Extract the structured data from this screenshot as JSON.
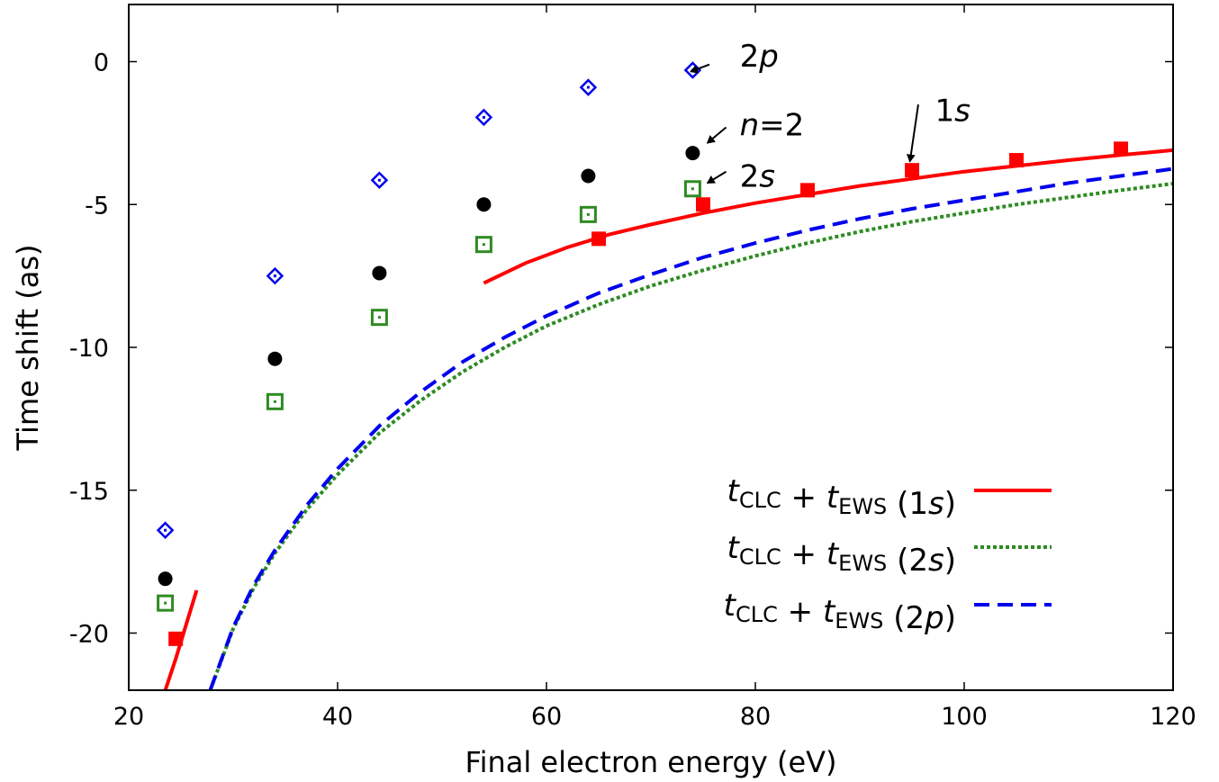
{
  "chart_data": {
    "type": "scatter",
    "xlabel": "Final electron energy (eV)",
    "ylabel": "Time shift (as)",
    "xlim": [
      20,
      120
    ],
    "ylim": [
      -22,
      2
    ],
    "x_ticks": [
      20,
      40,
      60,
      80,
      100,
      120
    ],
    "y_ticks": [
      0,
      -5,
      -10,
      -15,
      -20
    ],
    "x_tick_labels": [
      "20",
      "40",
      "60",
      "80",
      "100",
      "120"
    ],
    "y_tick_labels": [
      "0",
      "-5",
      "-10",
      "-15",
      "-20"
    ],
    "grid": false,
    "legend_position": "bottom-right",
    "point_series": [
      {
        "id": "1s",
        "marker": "filled-square",
        "color": "#ff0000",
        "x": [
          24.5,
          65,
          75,
          85,
          95,
          105,
          115
        ],
        "y": [
          -20.2,
          -6.2,
          -5.0,
          -4.5,
          -3.8,
          -3.45,
          -3.05
        ]
      },
      {
        "id": "2s",
        "marker": "open-square-dot",
        "color": "#2e8b22",
        "x": [
          23.5,
          34,
          44,
          54,
          64,
          74
        ],
        "y": [
          -18.95,
          -11.9,
          -8.95,
          -6.4,
          -5.35,
          -4.45
        ]
      },
      {
        "id": "n2",
        "marker": "filled-circle",
        "color": "#000000",
        "x": [
          23.5,
          34,
          44,
          54,
          64,
          74
        ],
        "y": [
          -18.1,
          -10.4,
          -7.4,
          -5.0,
          -4.0,
          -3.2
        ]
      },
      {
        "id": "2p",
        "marker": "open-diamond-dot",
        "color": "#0000ee",
        "x": [
          23.5,
          34,
          44,
          54,
          64,
          74
        ],
        "y": [
          -16.4,
          -7.5,
          -4.15,
          -1.95,
          -0.9,
          -0.3
        ]
      }
    ],
    "line_series": [
      {
        "id": "clc-1s-low",
        "style": "solid",
        "color": "#ff0000",
        "x": [
          23.5,
          24.5,
          25.5,
          26.5
        ],
        "y": [
          -22.0,
          -20.9,
          -19.7,
          -18.5
        ]
      },
      {
        "id": "clc-1s",
        "style": "solid",
        "color": "#ff0000",
        "x": [
          54,
          58,
          62,
          66,
          70,
          75,
          80,
          85,
          90,
          95,
          100,
          105,
          110,
          115,
          120
        ],
        "y": [
          -7.75,
          -7.05,
          -6.5,
          -6.05,
          -5.7,
          -5.3,
          -4.95,
          -4.65,
          -4.35,
          -4.1,
          -3.85,
          -3.65,
          -3.45,
          -3.27,
          -3.1
        ]
      },
      {
        "id": "clc-2s",
        "style": "dotted",
        "color": "#2e8b22",
        "x": [
          27.8,
          30,
          32,
          34,
          37,
          40,
          44,
          48,
          52,
          56,
          60,
          65,
          70,
          75,
          80,
          85,
          90,
          95,
          100,
          105,
          110,
          115,
          120
        ],
        "y": [
          -22.0,
          -19.85,
          -18.4,
          -17.2,
          -15.7,
          -14.45,
          -13.0,
          -11.85,
          -10.85,
          -10.0,
          -9.25,
          -8.5,
          -7.85,
          -7.3,
          -6.8,
          -6.35,
          -5.95,
          -5.6,
          -5.3,
          -5.0,
          -4.75,
          -4.5,
          -4.27
        ]
      },
      {
        "id": "clc-2p",
        "style": "dashed",
        "color": "#0000ee",
        "x": [
          27.8,
          30,
          32,
          34,
          37,
          40,
          44,
          48,
          52,
          56,
          60,
          65,
          70,
          75,
          80,
          85,
          90,
          95,
          100,
          105,
          110,
          115,
          120
        ],
        "y": [
          -22.0,
          -19.8,
          -18.3,
          -17.1,
          -15.55,
          -14.25,
          -12.75,
          -11.55,
          -10.5,
          -9.65,
          -8.9,
          -8.1,
          -7.45,
          -6.85,
          -6.35,
          -5.9,
          -5.5,
          -5.15,
          -4.85,
          -4.55,
          -4.25,
          -4.0,
          -3.75
        ]
      }
    ],
    "annotations": [
      {
        "id": "2p",
        "parts": [
          {
            "t": "2",
            "italic": false
          },
          {
            "t": "p",
            "italic": true
          }
        ],
        "x": 78.5,
        "y": 0.2,
        "arrow_from": [
          75.6,
          -0.1
        ],
        "arrow_to": [
          73.8,
          -0.35
        ]
      },
      {
        "id": "n2",
        "parts": [
          {
            "t": "n",
            "italic": true
          },
          {
            "t": "=2",
            "italic": false
          }
        ],
        "x": 78.5,
        "y": -2.2,
        "arrow_from": [
          77.2,
          -2.3
        ],
        "arrow_to": [
          75.4,
          -2.85
        ]
      },
      {
        "id": "2s",
        "parts": [
          {
            "t": "2",
            "italic": false
          },
          {
            "t": "s",
            "italic": true
          }
        ],
        "x": 78.5,
        "y": -4.0,
        "arrow_from": [
          77.2,
          -3.85
        ],
        "arrow_to": [
          75.4,
          -4.25
        ]
      },
      {
        "id": "1s",
        "parts": [
          {
            "t": "1",
            "italic": false
          },
          {
            "t": "s",
            "italic": true
          }
        ],
        "x": 97.2,
        "y": -1.7,
        "arrow_from": [
          95.6,
          -1.5
        ],
        "arrow_to": [
          94.8,
          -3.5
        ]
      }
    ],
    "legend": [
      {
        "series": "clc-1s",
        "parts": [
          {
            "t": "t",
            "italic": true
          },
          {
            "t": "CLC",
            "sub": true
          },
          {
            "t": " + "
          },
          {
            "t": "t",
            "italic": true
          },
          {
            "t": "EWS",
            "sub": true
          },
          {
            "t": " (1"
          },
          {
            "t": "s",
            "italic": true
          },
          {
            "t": ")"
          }
        ]
      },
      {
        "series": "clc-2s",
        "parts": [
          {
            "t": "t",
            "italic": true
          },
          {
            "t": "CLC",
            "sub": true
          },
          {
            "t": " + "
          },
          {
            "t": "t",
            "italic": true
          },
          {
            "t": "EWS",
            "sub": true
          },
          {
            "t": " (2"
          },
          {
            "t": "s",
            "italic": true
          },
          {
            "t": ")"
          }
        ]
      },
      {
        "series": "clc-2p",
        "parts": [
          {
            "t": "t",
            "italic": true
          },
          {
            "t": "CLC",
            "sub": true
          },
          {
            "t": " + "
          },
          {
            "t": "t",
            "italic": true
          },
          {
            "t": "EWS",
            "sub": true
          },
          {
            "t": " (2"
          },
          {
            "t": "p",
            "italic": true
          },
          {
            "t": ")"
          }
        ]
      }
    ]
  }
}
